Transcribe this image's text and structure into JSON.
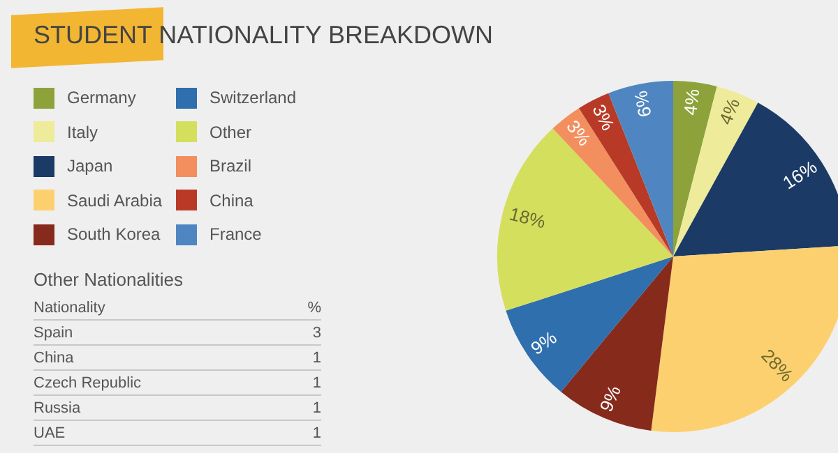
{
  "chart_data": [
    {
      "type": "pie",
      "title": "STUDENT NATIONALITY BREAKDOWN",
      "categories": [
        "Germany",
        "Italy",
        "Japan",
        "Saudi Arabia",
        "South Korea",
        "Switzerland",
        "Other",
        "Brazil",
        "China",
        "France"
      ],
      "values": [
        4,
        4,
        16,
        28,
        9,
        9,
        18,
        3,
        3,
        6
      ],
      "colors": [
        "#8da23a",
        "#eeeb9a",
        "#1b3a66",
        "#fdd06f",
        "#862a1c",
        "#2f6fae",
        "#d4df5e",
        "#f38f5f",
        "#b83a26",
        "#4f86c1"
      ],
      "value_labels": [
        "4%",
        "4%",
        "16%",
        "28%",
        "9%",
        "9%",
        "18%",
        "3%",
        "3%",
        "6%"
      ],
      "legend": "top left"
    },
    {
      "type": "other",
      "title": "Other Nationalities",
      "xlabel": "Nationality",
      "ylabel": "%",
      "categories": [
        "Spain",
        "China",
        "Czech Republic",
        "Russia",
        "UAE"
      ],
      "values": [
        3,
        1,
        1,
        1,
        1
      ],
      "data_labels": true
    }
  ]
}
